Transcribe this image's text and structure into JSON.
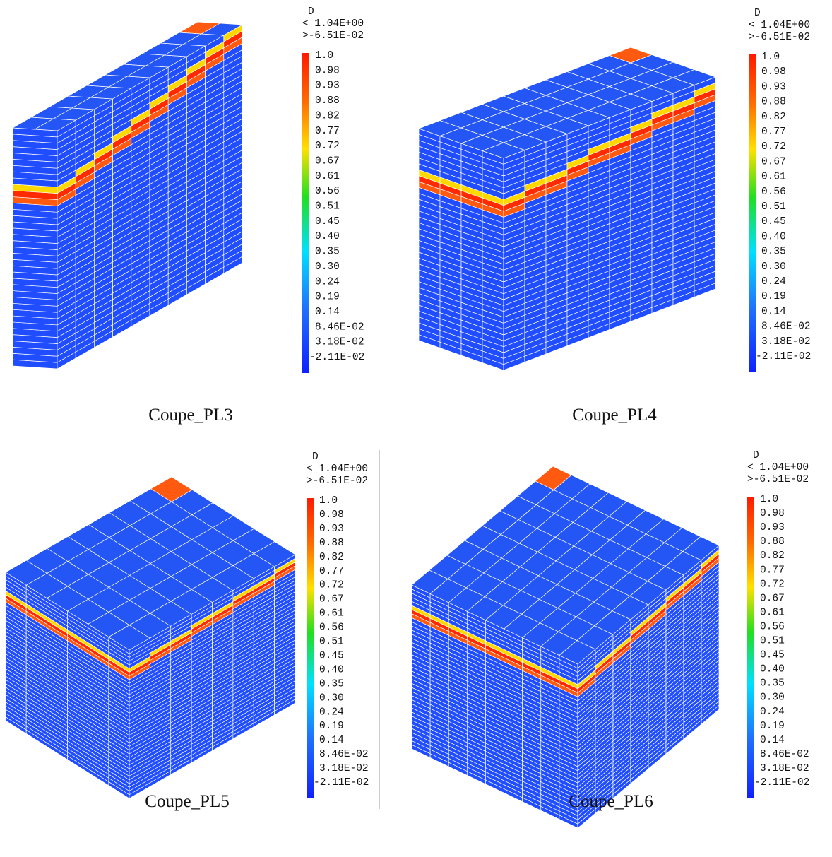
{
  "panels": [
    {
      "caption": "Coupe_PL3",
      "legend": {
        "title": "D",
        "max": "< 1.04E+00",
        "min": ">-6.51E-02",
        "levels": [
          "1.0",
          "0.98",
          "0.93",
          "0.88",
          "0.82",
          "0.77",
          "0.72",
          "0.67",
          "0.61",
          "0.56",
          "0.51",
          "0.45",
          "0.40",
          "0.35",
          "0.30",
          "0.24",
          "0.19",
          "0.14",
          "8.46E-02",
          "3.18E-02",
          "-2.11E-02"
        ]
      }
    },
    {
      "caption": "Coupe_PL4",
      "legend": {
        "title": "D",
        "max": "< 1.04E+00",
        "min": ">-6.51E-02",
        "levels": [
          "1.0",
          "0.98",
          "0.93",
          "0.88",
          "0.82",
          "0.77",
          "0.72",
          "0.67",
          "0.61",
          "0.56",
          "0.51",
          "0.45",
          "0.40",
          "0.35",
          "0.30",
          "0.24",
          "0.19",
          "0.14",
          "8.46E-02",
          "3.18E-02",
          "-2.11E-02"
        ]
      }
    },
    {
      "caption": "Coupe_PL5",
      "legend": {
        "title": "D",
        "max": "< 1.04E+00",
        "min": ">-6.51E-02",
        "levels": [
          "1.0",
          "0.98",
          "0.93",
          "0.88",
          "0.82",
          "0.77",
          "0.72",
          "0.67",
          "0.61",
          "0.56",
          "0.51",
          "0.45",
          "0.40",
          "0.35",
          "0.30",
          "0.24",
          "0.19",
          "0.14",
          "8.46E-02",
          "3.18E-02",
          "-2.11E-02"
        ]
      }
    },
    {
      "caption": "Coupe_PL6",
      "legend": {
        "title": "D",
        "max": "< 1.04E+00",
        "min": ">-6.51E-02",
        "levels": [
          "1.0",
          "0.98",
          "0.93",
          "0.88",
          "0.82",
          "0.77",
          "0.72",
          "0.67",
          "0.61",
          "0.56",
          "0.51",
          "0.45",
          "0.40",
          "0.35",
          "0.30",
          "0.24",
          "0.19",
          "0.14",
          "8.46E-02",
          "3.18E-02",
          "-2.11E-02"
        ]
      }
    }
  ]
}
